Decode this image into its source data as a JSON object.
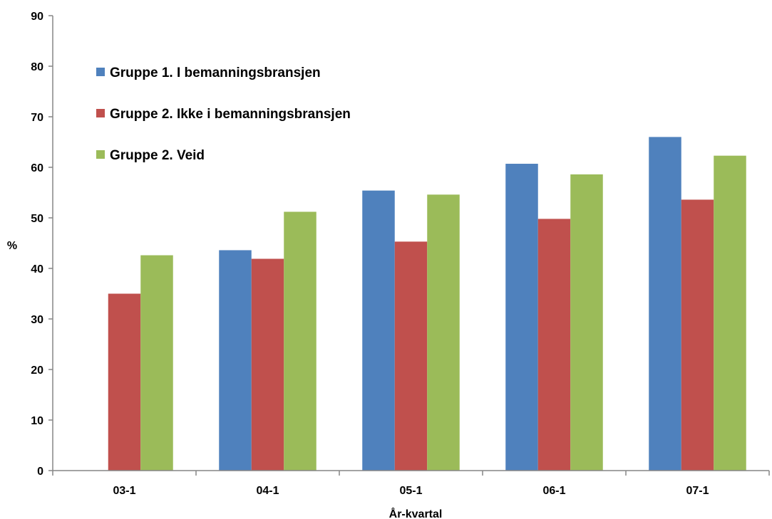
{
  "chart_data": {
    "type": "bar",
    "title": "",
    "xlabel": "År-kvartal",
    "ylabel": "%",
    "ylim": [
      0,
      90
    ],
    "yticks": [
      0,
      10,
      20,
      30,
      40,
      50,
      60,
      70,
      80,
      90
    ],
    "categories": [
      "03-1",
      "04-1",
      "05-1",
      "06-1",
      "07-1"
    ],
    "grid": false,
    "legend_position": "top-left",
    "series": [
      {
        "name": "Gruppe 1. I bemanningsbransjen",
        "color": "#4F81BD",
        "values": [
          null,
          43.6,
          55.4,
          60.7,
          66.0
        ]
      },
      {
        "name": "Gruppe 2. Ikke i bemanningsbransjen",
        "color": "#C0504D",
        "values": [
          35.0,
          41.9,
          45.3,
          49.8,
          53.6
        ]
      },
      {
        "name": "Gruppe 2. Veid",
        "color": "#9BBB59",
        "values": [
          42.6,
          51.2,
          54.6,
          58.6,
          62.3
        ]
      }
    ]
  }
}
